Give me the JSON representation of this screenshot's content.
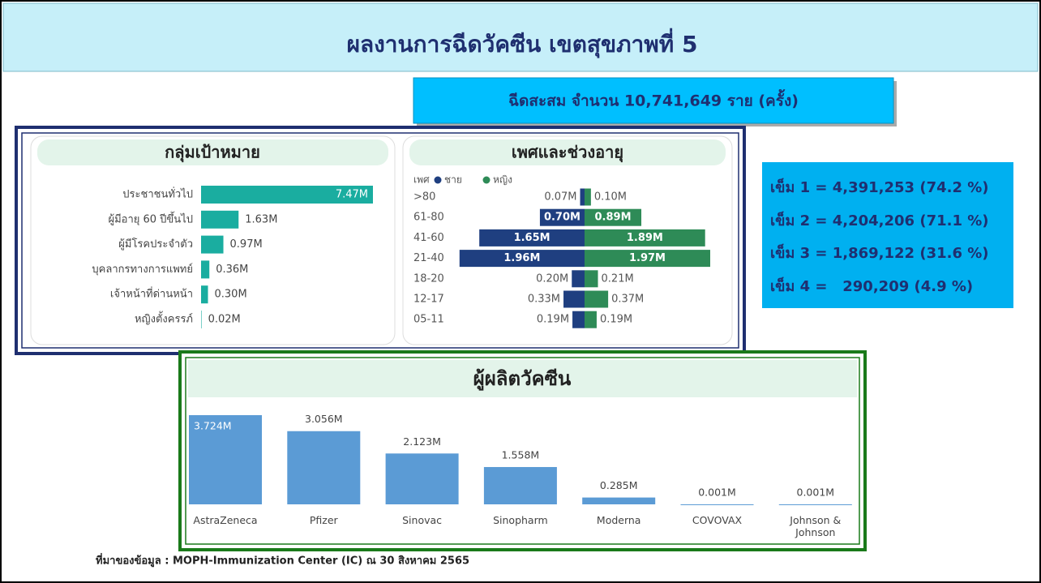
{
  "header": {
    "title": "ผลงานการฉีดวัคซีน เขตสุขภาพที่ 5"
  },
  "total": "ฉีดสะสม จำนวน 10,741,649 ราย (ครั้ง)",
  "doses": [
    "เข็ม 1 = 4,391,253 (74.2 %)",
    "เข็ม 2 = 4,204,206 (71.1 %)",
    "เข็ม 3 = 1,869,122 (31.6 %)",
    "เข็ม 4 =   290,209 (4.9 %)"
  ],
  "source": "ที่มาของข้อมูล : MOPH-Immunization Center (IC) ณ 30 สิงหาคม 2565",
  "chart_data": [
    {
      "type": "bar",
      "orientation": "horizontal",
      "title": "กลุ่มเป้าหมาย",
      "categories": [
        "ประชาชนทั่วไป",
        "ผู้มีอายุ 60 ปีขึ้นไป",
        "ผู้มีโรคประจำตัว",
        "บุคลากรทางการแพทย์",
        "เจ้าหน้าที่ด่านหน้า",
        "หญิงตั้งครรภ์"
      ],
      "values": [
        7.47,
        1.63,
        0.97,
        0.36,
        0.3,
        0.02
      ],
      "value_labels": [
        "7.47M",
        "1.63M",
        "0.97M",
        "0.36M",
        "0.30M",
        "0.02M"
      ],
      "color": "#1aada0"
    },
    {
      "type": "pyramid",
      "title": "เพศและช่วงอายุ",
      "legend_title": "เพศ",
      "categories": [
        ">80",
        "61-80",
        "41-60",
        "21-40",
        "18-20",
        "12-17",
        "05-11"
      ],
      "series": [
        {
          "name": "ชาย",
          "color": "#1f3f80",
          "values": [
            0.07,
            0.7,
            1.65,
            1.96,
            0.2,
            0.33,
            0.19
          ],
          "value_labels": [
            "0.07M",
            "0.70M",
            "1.65M",
            "1.96M",
            "0.20M",
            "0.33M",
            "0.19M"
          ]
        },
        {
          "name": "หญิง",
          "color": "#2e8b57",
          "values": [
            0.1,
            0.89,
            1.89,
            1.97,
            0.21,
            0.37,
            0.19
          ],
          "value_labels": [
            "0.10M",
            "0.89M",
            "1.89M",
            "1.97M",
            "0.21M",
            "0.37M",
            "0.19M"
          ]
        }
      ]
    },
    {
      "type": "bar",
      "orientation": "vertical",
      "title": "ผู้ผลิตวัคซีน",
      "categories": [
        "AstraZeneca",
        "Pfizer",
        "Sinovac",
        "Sinopharm",
        "Moderna",
        "COVOVAX",
        "Johnson & Johnson"
      ],
      "values": [
        3.724,
        3.056,
        2.123,
        1.558,
        0.285,
        0.001,
        0.001
      ],
      "value_labels": [
        "3.724M",
        "3.056M",
        "2.123M",
        "1.558M",
        "0.285M",
        "0.001M",
        "0.001M"
      ],
      "color": "#5b9bd5"
    }
  ]
}
